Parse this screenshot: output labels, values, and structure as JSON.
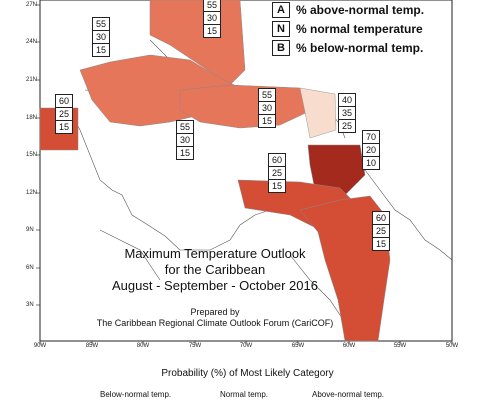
{
  "legend": [
    {
      "key": "A",
      "text": "% above-normal temp."
    },
    {
      "key": "N",
      "text": "% normal temperature"
    },
    {
      "key": "B",
      "text": "% below-normal temp."
    }
  ],
  "title_lines": [
    "Maximum Temperature Outlook",
    "for the Caribbean",
    "August - September - October 2016"
  ],
  "prepared_by": [
    "Prepared by",
    "The Caribbean Regional Climate Outlook Forum (CariCOF)"
  ],
  "x_ticks": [
    "90W",
    "85W",
    "80W",
    "75W",
    "70W",
    "65W",
    "60W",
    "55W",
    "50W"
  ],
  "y_ticks": [
    "27N",
    "24N",
    "21N",
    "18N",
    "15N",
    "12N",
    "9N",
    "6N",
    "3N"
  ],
  "boxes": [
    {
      "id": "box-bahamas",
      "values": [
        "55",
        "30",
        "15"
      ]
    },
    {
      "id": "box-turks",
      "values": [
        "55",
        "30",
        "15"
      ]
    },
    {
      "id": "box-belize",
      "values": [
        "60",
        "25",
        "15"
      ]
    },
    {
      "id": "box-jamaica",
      "values": [
        "55",
        "30",
        "15"
      ]
    },
    {
      "id": "box-pr",
      "values": [
        "55",
        "30",
        "15"
      ]
    },
    {
      "id": "box-leewards",
      "values": [
        "40",
        "35",
        "25"
      ]
    },
    {
      "id": "box-windwards",
      "values": [
        "70",
        "20",
        "10"
      ]
    },
    {
      "id": "box-colombia",
      "values": [
        "60",
        "25",
        "15"
      ]
    },
    {
      "id": "box-guianas",
      "values": [
        "60",
        "25",
        "15"
      ]
    }
  ],
  "probability_title": "Probability (%) of Most Likely Category",
  "categories": [
    "Below-normal temp.",
    "Normal temp.",
    "Above-normal temp."
  ],
  "colors": {
    "above_40": "#f8dccd",
    "above_55": "#e5765a",
    "above_60": "#d44e36",
    "above_70": "#a52a1e",
    "land_outline": "#555555"
  }
}
